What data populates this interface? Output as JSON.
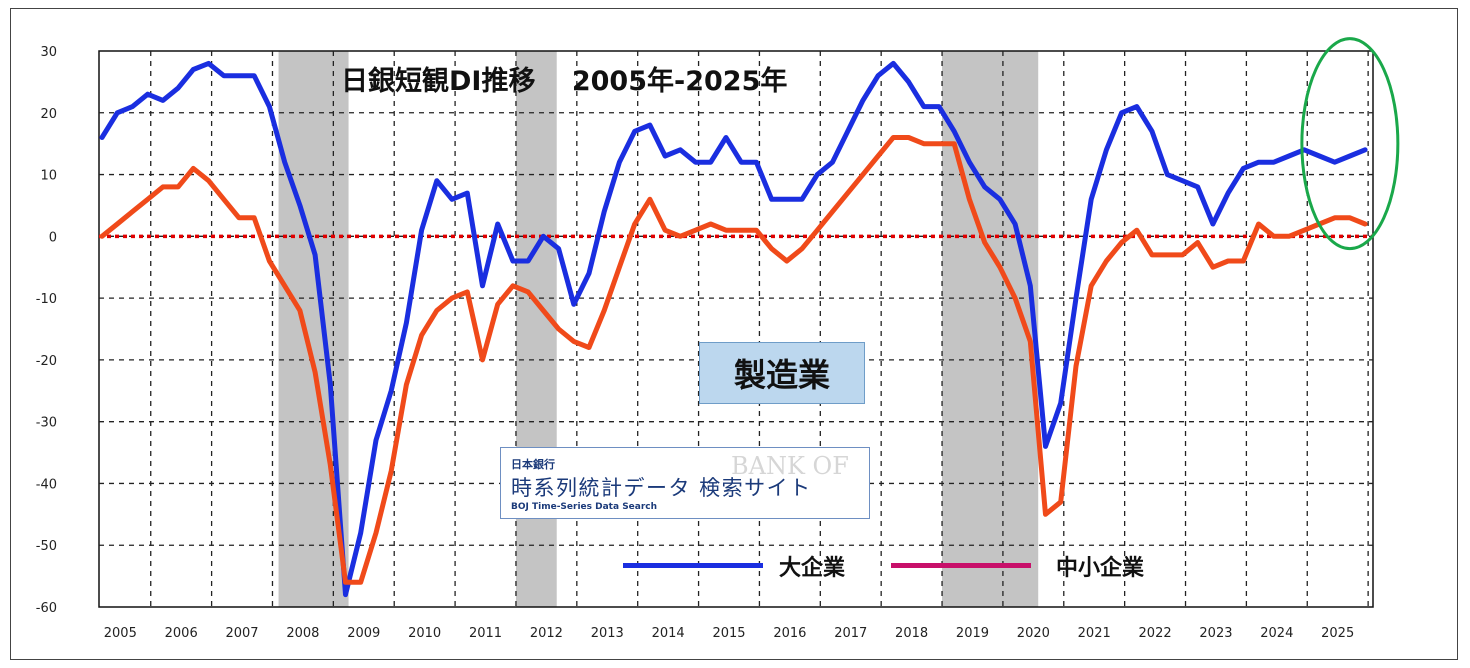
{
  "title": "日銀短観DI推移　 2005年-2025年",
  "sector_label": "製造業",
  "source_box": {
    "small": "日本銀行",
    "main": "時系列統計データ 検索サイト",
    "sub": "BOJ Time-Series Data Search",
    "watermark": "BANK OF"
  },
  "chart_data": {
    "type": "line",
    "title": "日銀短観DI推移　 2005年-2025年",
    "xlabel": "",
    "ylabel": "",
    "ylim": [
      -60,
      30
    ],
    "yticks": [
      30,
      20,
      10,
      0,
      -10,
      -20,
      -30,
      -40,
      -50,
      -60
    ],
    "xlim": [
      2004.65,
      2025.58
    ],
    "year_labels": [
      "2005",
      "2006",
      "2007",
      "2008",
      "2009",
      "2010",
      "2011",
      "2012",
      "2013",
      "2014",
      "2015",
      "2016",
      "2017",
      "2018",
      "2019",
      "2020",
      "2021",
      "2022",
      "2023",
      "2024",
      "2025"
    ],
    "grid": true,
    "legend_position": "bottom-right",
    "recession_bands": [
      [
        2007.6,
        2008.75
      ],
      [
        2011.5,
        2012.17
      ],
      [
        2018.5,
        2020.08
      ]
    ],
    "zero_line": {
      "value": 0,
      "color": "#e00000",
      "style": "dotted"
    },
    "series": [
      {
        "name": "大企業",
        "color": "#1a2ee0",
        "x": [
          2004.7,
          2004.95,
          2005.2,
          2005.45,
          2005.7,
          2005.95,
          2006.2,
          2006.45,
          2006.7,
          2006.95,
          2007.2,
          2007.45,
          2007.7,
          2007.95,
          2008.2,
          2008.45,
          2008.7,
          2008.95,
          2009.2,
          2009.45,
          2009.7,
          2009.95,
          2010.2,
          2010.45,
          2010.7,
          2010.95,
          2011.2,
          2011.45,
          2011.7,
          2011.95,
          2012.2,
          2012.45,
          2012.7,
          2012.95,
          2013.2,
          2013.45,
          2013.7,
          2013.95,
          2014.2,
          2014.45,
          2014.7,
          2014.95,
          2015.2,
          2015.45,
          2015.7,
          2015.95,
          2016.2,
          2016.45,
          2016.7,
          2016.95,
          2017.2,
          2017.45,
          2017.7,
          2017.95,
          2018.2,
          2018.45,
          2018.7,
          2018.95,
          2019.2,
          2019.45,
          2019.7,
          2019.95,
          2020.2,
          2020.45,
          2020.7,
          2020.95,
          2021.2,
          2021.45,
          2021.7,
          2021.95,
          2022.2,
          2022.45,
          2022.7,
          2022.95,
          2023.2,
          2023.45,
          2023.7,
          2023.95,
          2024.2,
          2024.45,
          2024.7,
          2024.95,
          2025.2,
          2025.45
        ],
        "values": [
          16,
          20,
          21,
          23,
          22,
          24,
          27,
          28,
          26,
          26,
          26,
          21,
          12,
          5,
          -3,
          -24,
          -58,
          -48,
          -33,
          -25,
          -14,
          1,
          9,
          6,
          7,
          -8,
          2,
          -4,
          -4,
          0,
          -2,
          -11,
          -6,
          4,
          12,
          17,
          18,
          13,
          14,
          12,
          12,
          16,
          12,
          12,
          6,
          6,
          6,
          10,
          12,
          17,
          22,
          26,
          28,
          25,
          21,
          21,
          17,
          12,
          8,
          6,
          2,
          -8,
          -34,
          -27,
          -10,
          6,
          14,
          20,
          21,
          17,
          10,
          9,
          8,
          2,
          7,
          11,
          12,
          12,
          13,
          14,
          13,
          12,
          13,
          14
        ]
      },
      {
        "name": "中小企業",
        "color": "#f04a1a",
        "x": [
          2004.7,
          2004.95,
          2005.2,
          2005.45,
          2005.7,
          2005.95,
          2006.2,
          2006.45,
          2006.7,
          2006.95,
          2007.2,
          2007.45,
          2007.7,
          2007.95,
          2008.2,
          2008.45,
          2008.7,
          2008.95,
          2009.2,
          2009.45,
          2009.7,
          2009.95,
          2010.2,
          2010.45,
          2010.7,
          2010.95,
          2011.2,
          2011.45,
          2011.7,
          2011.95,
          2012.2,
          2012.45,
          2012.7,
          2012.95,
          2013.2,
          2013.45,
          2013.7,
          2013.95,
          2014.2,
          2014.45,
          2014.7,
          2014.95,
          2015.2,
          2015.45,
          2015.7,
          2015.95,
          2016.2,
          2016.45,
          2016.7,
          2016.95,
          2017.2,
          2017.45,
          2017.7,
          2017.95,
          2018.2,
          2018.45,
          2018.7,
          2018.95,
          2019.2,
          2019.45,
          2019.7,
          2019.95,
          2020.2,
          2020.45,
          2020.7,
          2020.95,
          2021.2,
          2021.45,
          2021.7,
          2021.95,
          2022.2,
          2022.45,
          2022.7,
          2022.95,
          2023.2,
          2023.45,
          2023.7,
          2023.95,
          2024.2,
          2024.45,
          2024.7,
          2024.95,
          2025.2,
          2025.45
        ],
        "values": [
          0,
          2,
          4,
          6,
          8,
          8,
          11,
          9,
          6,
          3,
          3,
          -4,
          -8,
          -12,
          -22,
          -37,
          -56,
          -56,
          -48,
          -38,
          -24,
          -16,
          -12,
          -10,
          -9,
          -20,
          -11,
          -8,
          -9,
          -12,
          -15,
          -17,
          -18,
          -12,
          -5,
          2,
          6,
          1,
          0,
          1,
          2,
          1,
          1,
          1,
          -2,
          -4,
          -2,
          1,
          4,
          7,
          10,
          13,
          16,
          16,
          15,
          15,
          15,
          6,
          -1,
          -5,
          -10,
          -17,
          -45,
          -43,
          -21,
          -8,
          -4,
          -1,
          1,
          -3,
          -3,
          -3,
          -1,
          -5,
          -4,
          -4,
          2,
          0,
          0,
          1,
          2,
          3,
          3,
          2
        ]
      }
    ]
  }
}
